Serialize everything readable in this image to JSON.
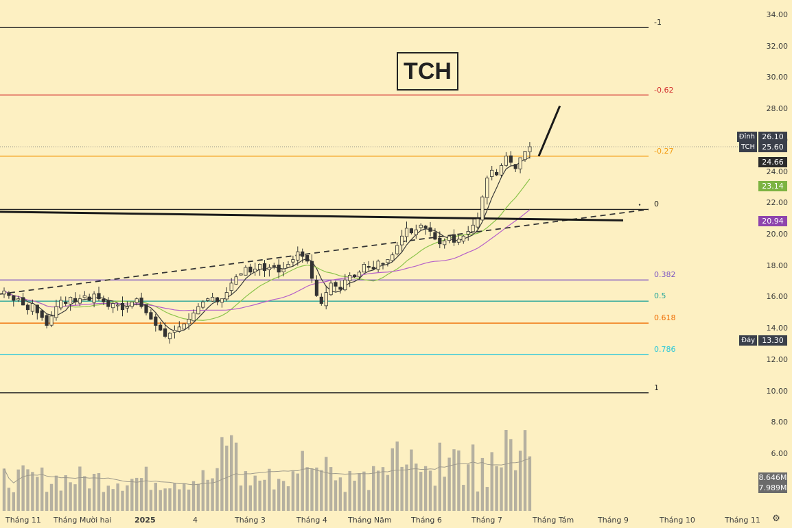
{
  "title": "TCH",
  "colors": {
    "background": "#fdf0c2",
    "candle": "#333333",
    "sma_short": "#3a3a3a",
    "sma_mid": "#8bc34a",
    "sma_long": "#b55fc9",
    "volume": "#b5b0a0",
    "volume_ma": "#9e9a8c"
  },
  "chart_data": {
    "type": "candlestick",
    "symbol": "TCH",
    "ylim": [
      7.0,
      35.0
    ],
    "y_ticks": [
      "34.00",
      "32.00",
      "30.00",
      "28.00",
      "26.00",
      "24.00",
      "22.00",
      "20.00",
      "18.00",
      "16.00",
      "14.00",
      "12.00",
      "10.00",
      "8.00",
      "6.00"
    ],
    "x_ticks": [
      "Tháng 11",
      "Tháng Mười hai",
      "2025",
      "4",
      "Tháng 3",
      "Tháng 4",
      "Tháng Năm",
      "Tháng 6",
      "Tháng 7",
      "Tháng Tám",
      "Tháng 9",
      "Tháng 10",
      "Tháng 11"
    ],
    "fib_levels": [
      {
        "label": "-1",
        "price": 33.2,
        "color": "#222222"
      },
      {
        "label": "-0.62",
        "price": 28.9,
        "color": "#d32f2f"
      },
      {
        "label": "-0.27",
        "price": 25.0,
        "color": "#f39c12"
      },
      {
        "label": "0",
        "price": 21.6,
        "color": "#222222"
      },
      {
        "label": "0.382",
        "price": 17.1,
        "color": "#7e57c2"
      },
      {
        "label": "0.5",
        "price": 15.75,
        "color": "#26a69a"
      },
      {
        "label": "0.618",
        "price": 14.35,
        "color": "#ef6c00"
      },
      {
        "label": "0.786",
        "price": 12.35,
        "color": "#26c6da"
      },
      {
        "label": "1",
        "price": 9.9,
        "color": "#222222"
      }
    ],
    "price_tags": [
      {
        "name": "Đỉnh",
        "value": "26.10",
        "bg": "#3a3f4a"
      },
      {
        "name": "TCH",
        "value": "25.60",
        "bg": "#3a3f4a"
      },
      {
        "name": "",
        "value": "24.66",
        "bg": "#2b2b2b"
      },
      {
        "name": "",
        "value": "23.14",
        "bg": "#7cb342"
      },
      {
        "name": "",
        "value": "20.94",
        "bg": "#8e44ad"
      },
      {
        "name": "Đáy",
        "value": "13.30",
        "bg": "#3a3f4a"
      }
    ],
    "volume_tags": [
      {
        "value": "8.646M",
        "bg": "#6b6b6b"
      },
      {
        "value": "7.989M",
        "bg": "#6b6b6b"
      }
    ],
    "ohlc_closes": [
      16.4,
      16.1,
      15.8,
      15.9,
      15.5,
      15.2,
      15.6,
      15.0,
      14.7,
      14.2,
      14.8,
      15.4,
      15.8,
      15.6,
      16.0,
      15.7,
      15.9,
      16.1,
      15.8,
      16.2,
      15.9,
      15.7,
      15.4,
      15.6,
      15.5,
      15.2,
      15.4,
      15.7,
      15.9,
      15.4,
      15.0,
      14.6,
      14.2,
      13.9,
      13.5,
      13.7,
      13.9,
      14.1,
      14.3,
      14.6,
      15.0,
      15.4,
      15.7,
      15.9,
      16.0,
      15.7,
      15.9,
      16.3,
      16.9,
      17.3,
      17.5,
      17.9,
      17.6,
      17.8,
      18.1,
      17.7,
      17.9,
      18.0,
      17.6,
      17.8,
      18.1,
      18.4,
      18.9,
      18.6,
      18.3,
      17.2,
      16.1,
      15.6,
      16.3,
      16.9,
      16.7,
      16.5,
      17.1,
      17.4,
      17.3,
      17.6,
      18.1,
      17.9,
      17.8,
      18.3,
      18.1,
      18.4,
      18.7,
      19.3,
      19.9,
      20.4,
      20.1,
      20.3,
      20.6,
      20.4,
      20.2,
      19.7,
      19.4,
      19.6,
      19.9,
      19.5,
      19.7,
      19.9,
      20.2,
      20.6,
      21.0,
      22.4,
      23.6,
      24.1,
      23.8,
      24.4,
      25.0,
      24.6,
      24.2,
      24.9,
      25.3,
      25.6
    ],
    "projection": [
      {
        "x_index": 110,
        "price": 25.0
      },
      {
        "x_index": 113,
        "price": 28.2
      }
    ],
    "trendlines": [
      "ascending-dashed-support",
      "descending-resistance"
    ]
  }
}
